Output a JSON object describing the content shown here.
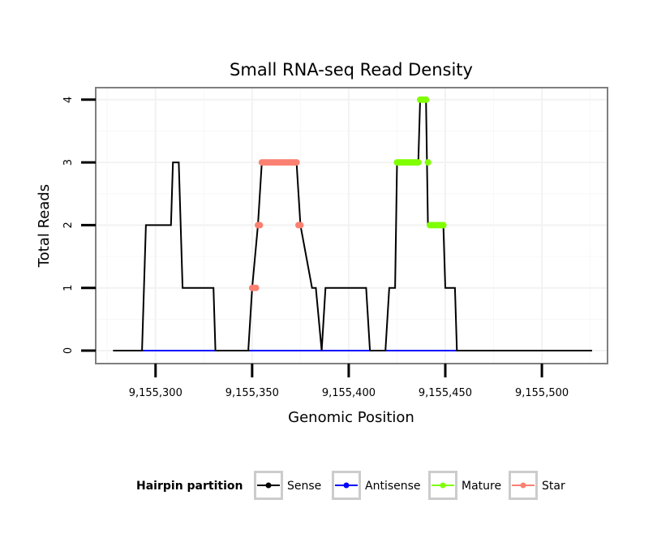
{
  "chart_data": {
    "type": "line",
    "title": "Small RNA-seq Read Density",
    "xlabel": "Genomic Position",
    "ylabel": "Total Reads",
    "xlim": [
      9155277,
      9155526
    ],
    "ylim": [
      -0.15,
      4.2
    ],
    "x_ticks": [
      9155300,
      9155350,
      9155400,
      9155450,
      9155500
    ],
    "x_tick_labels": [
      "9,155,300",
      "9,155,350",
      "9,155,400",
      "9,155,450",
      "9,155,500"
    ],
    "y_ticks": [
      0,
      1,
      2,
      3,
      4
    ],
    "y_tick_labels": [
      "0",
      "1",
      "2",
      "3",
      "4"
    ],
    "grid": true,
    "legend": {
      "title": "Hairpin partition",
      "position": "bottom",
      "items": [
        {
          "name": "Sense",
          "color": "#000000"
        },
        {
          "name": "Antisense",
          "color": "#0000ff"
        },
        {
          "name": "Mature",
          "color": "#7fff00"
        },
        {
          "name": "Star",
          "color": "#fa8072"
        }
      ]
    },
    "series": [
      {
        "name": "Sense",
        "color": "#000000",
        "x": [
          9155278,
          9155293,
          9155295,
          9155308,
          9155309,
          9155312,
          9155314,
          9155330,
          9155331,
          9155348,
          9155350,
          9155353,
          9155355,
          9155373,
          9155375,
          9155381,
          9155383,
          9155386,
          9155388,
          9155409,
          9155411,
          9155419,
          9155421,
          9155424,
          9155425,
          9155436,
          9155437,
          9155440,
          9155441,
          9155449,
          9155450,
          9155455,
          9155456,
          9155526
        ],
        "values": [
          0,
          0,
          2,
          2,
          3,
          3,
          1,
          1,
          0,
          0,
          1,
          2,
          3,
          3,
          2,
          1,
          1,
          0,
          1,
          1,
          0,
          0,
          1,
          1,
          3,
          3,
          4,
          4,
          2,
          2,
          1,
          1,
          0,
          0
        ]
      },
      {
        "name": "Antisense",
        "color": "#0000ff",
        "x": [
          9155293,
          9155456
        ],
        "values": [
          0,
          0
        ]
      }
    ],
    "point_series": [
      {
        "name": "Star",
        "color": "#fa8072",
        "points": [
          [
            9155350,
            1
          ],
          [
            9155351,
            1
          ],
          [
            9155352,
            1
          ],
          [
            9155353,
            2
          ],
          [
            9155354,
            2
          ],
          [
            9155355,
            3
          ],
          [
            9155356,
            3
          ],
          [
            9155357,
            3
          ],
          [
            9155358,
            3
          ],
          [
            9155359,
            3
          ],
          [
            9155360,
            3
          ],
          [
            9155361,
            3
          ],
          [
            9155362,
            3
          ],
          [
            9155363,
            3
          ],
          [
            9155364,
            3
          ],
          [
            9155365,
            3
          ],
          [
            9155366,
            3
          ],
          [
            9155367,
            3
          ],
          [
            9155368,
            3
          ],
          [
            9155369,
            3
          ],
          [
            9155370,
            3
          ],
          [
            9155371,
            3
          ],
          [
            9155372,
            3
          ],
          [
            9155373,
            3
          ],
          [
            9155374,
            2
          ],
          [
            9155375,
            2
          ]
        ]
      },
      {
        "name": "Mature",
        "color": "#7fff00",
        "points": [
          [
            9155425,
            3
          ],
          [
            9155426,
            3
          ],
          [
            9155427,
            3
          ],
          [
            9155428,
            3
          ],
          [
            9155429,
            3
          ],
          [
            9155430,
            3
          ],
          [
            9155431,
            3
          ],
          [
            9155432,
            3
          ],
          [
            9155433,
            3
          ],
          [
            9155434,
            3
          ],
          [
            9155435,
            3
          ],
          [
            9155436,
            3
          ],
          [
            9155437,
            4
          ],
          [
            9155438,
            4
          ],
          [
            9155439,
            4
          ],
          [
            9155440,
            4
          ],
          [
            9155441,
            3
          ],
          [
            9155442,
            2
          ],
          [
            9155443,
            2
          ],
          [
            9155444,
            2
          ],
          [
            9155445,
            2
          ],
          [
            9155446,
            2
          ],
          [
            9155447,
            2
          ],
          [
            9155448,
            2
          ],
          [
            9155449,
            2
          ]
        ]
      }
    ]
  }
}
